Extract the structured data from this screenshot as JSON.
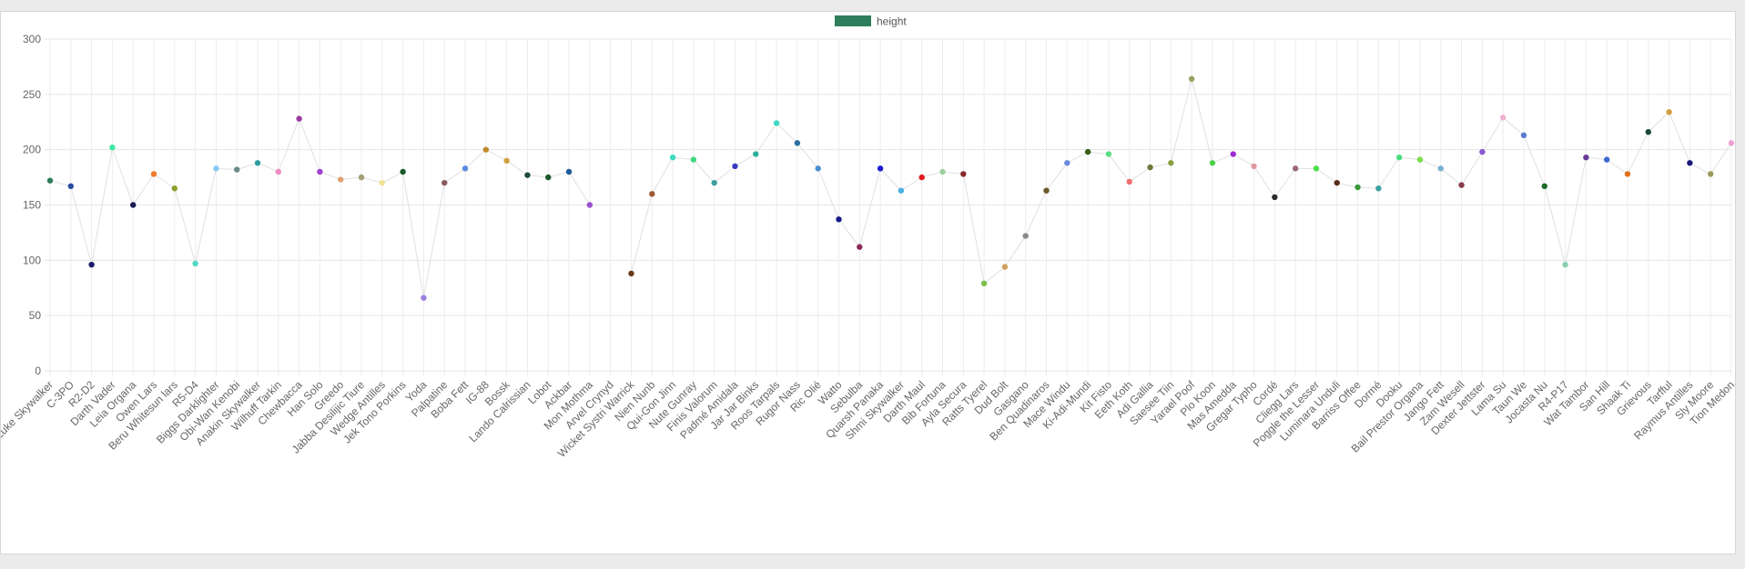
{
  "chart_data": {
    "type": "line",
    "legend": {
      "label": "height",
      "color": "#2e7d5b",
      "placement": "top-center"
    },
    "y_ticks": [
      "0",
      "50",
      "100",
      "150",
      "200",
      "250",
      "300"
    ],
    "ylim": [
      0,
      300
    ],
    "grid": true,
    "line_color": "#e0e0e0",
    "series": [
      {
        "name": "height",
        "points": [
          {
            "label": "Luke Skywalker",
            "value": 172,
            "color": "#2e7d5b"
          },
          {
            "label": "C-3PO",
            "value": 167,
            "color": "#2a4ea0"
          },
          {
            "label": "R2-D2",
            "value": 96,
            "color": "#1b1b6e"
          },
          {
            "label": "Darth Vader",
            "value": 202,
            "color": "#3ee8a5"
          },
          {
            "label": "Leia Organa",
            "value": 150,
            "color": "#1a1a55"
          },
          {
            "label": "Owen Lars",
            "value": 178,
            "color": "#f07a2a"
          },
          {
            "label": "Beru Whitesun lars",
            "value": 165,
            "color": "#8aa02a"
          },
          {
            "label": "R5-D4",
            "value": 97,
            "color": "#4fd8c0"
          },
          {
            "label": "Biggs Darklighter",
            "value": 183,
            "color": "#88c8f0"
          },
          {
            "label": "Obi-Wan Kenobi",
            "value": 182,
            "color": "#6a8a88"
          },
          {
            "label": "Anakin Skywalker",
            "value": 188,
            "color": "#2a9aa0"
          },
          {
            "label": "Wilhuff Tarkin",
            "value": 180,
            "color": "#f08ac0"
          },
          {
            "label": "Chewbacca",
            "value": 228,
            "color": "#9a3aa0"
          },
          {
            "label": "Han Solo",
            "value": 180,
            "color": "#a040d0"
          },
          {
            "label": "Greedo",
            "value": 173,
            "color": "#e0a070"
          },
          {
            "label": "Jabba Desilijic Tiure",
            "value": 175,
            "color": "#a0a070"
          },
          {
            "label": "Wedge Antilles",
            "value": 170,
            "color": "#f0e090"
          },
          {
            "label": "Jek Tono Porkins",
            "value": 180,
            "color": "#1a5a2a"
          },
          {
            "label": "Yoda",
            "value": 66,
            "color": "#9a80e0"
          },
          {
            "label": "Palpatine",
            "value": 170,
            "color": "#8a5a5a"
          },
          {
            "label": "Boba Fett",
            "value": 183,
            "color": "#5a8ae0"
          },
          {
            "label": "IG-88",
            "value": 200,
            "color": "#c08a2a"
          },
          {
            "label": "Bossk",
            "value": 190,
            "color": "#d0a040"
          },
          {
            "label": "Lando Calrissian",
            "value": 177,
            "color": "#1a4a3a"
          },
          {
            "label": "Lobot",
            "value": 175,
            "color": "#1a5a2a"
          },
          {
            "label": "Ackbar",
            "value": 180,
            "color": "#1a5a9a"
          },
          {
            "label": "Mon Mothma",
            "value": 150,
            "color": "#9a50d0"
          },
          {
            "label": "Arvel Crynyd",
            "value": null,
            "color": "#cccccc"
          },
          {
            "label": "Wicket Systri Warrick",
            "value": 88,
            "color": "#6a3a1a"
          },
          {
            "label": "Nien Nunb",
            "value": 160,
            "color": "#a05a3a"
          },
          {
            "label": "Qui-Gon Jinn",
            "value": 193,
            "color": "#3ed8c0"
          },
          {
            "label": "Nute Gunray",
            "value": 191,
            "color": "#3ed880"
          },
          {
            "label": "Finis Valorum",
            "value": 170,
            "color": "#3aa0a0"
          },
          {
            "label": "Padmé Amidala",
            "value": 185,
            "color": "#3a3ac0"
          },
          {
            "label": "Jar Jar Binks",
            "value": 196,
            "color": "#2ab0a0"
          },
          {
            "label": "Roos Tarpals",
            "value": 224,
            "color": "#3ed8c0"
          },
          {
            "label": "Rugor Nass",
            "value": 206,
            "color": "#2a70a0"
          },
          {
            "label": "Ric Olié",
            "value": 183,
            "color": "#4a90d0"
          },
          {
            "label": "Watto",
            "value": 137,
            "color": "#1a1a8a"
          },
          {
            "label": "Sebulba",
            "value": 112,
            "color": "#8a2a5a"
          },
          {
            "label": "Quarsh Panaka",
            "value": 183,
            "color": "#1a1ad0"
          },
          {
            "label": "Shmi Skywalker",
            "value": 163,
            "color": "#4ab0e0"
          },
          {
            "label": "Darth Maul",
            "value": 175,
            "color": "#e01a1a"
          },
          {
            "label": "Bib Fortuna",
            "value": 180,
            "color": "#9ad0a0"
          },
          {
            "label": "Ayla Secura",
            "value": 178,
            "color": "#8a2a2a"
          },
          {
            "label": "Ratts Tyerel",
            "value": 79,
            "color": "#7ac04a"
          },
          {
            "label": "Dud Bolt",
            "value": 94,
            "color": "#d0a060"
          },
          {
            "label": "Gasgano",
            "value": 122,
            "color": "#8a8a8a"
          },
          {
            "label": "Ben Quadinaros",
            "value": 163,
            "color": "#6a5a2a"
          },
          {
            "label": "Mace Windu",
            "value": 188,
            "color": "#6a8ae0"
          },
          {
            "label": "Ki-Adi-Mundi",
            "value": 198,
            "color": "#3a5a1a"
          },
          {
            "label": "Kit Fisto",
            "value": 196,
            "color": "#5ae080"
          },
          {
            "label": "Eeth Koth",
            "value": 171,
            "color": "#f07070"
          },
          {
            "label": "Adi Gallia",
            "value": 184,
            "color": "#6a7a3a"
          },
          {
            "label": "Saesee Tiin",
            "value": 188,
            "color": "#8aa040"
          },
          {
            "label": "Yarael Poof",
            "value": 264,
            "color": "#9aa060"
          },
          {
            "label": "Plo Koon",
            "value": 188,
            "color": "#4ad04a"
          },
          {
            "label": "Mas Amedda",
            "value": 196,
            "color": "#a02ad0"
          },
          {
            "label": "Gregar Typho",
            "value": 185,
            "color": "#e09aa0"
          },
          {
            "label": "Cordé",
            "value": 157,
            "color": "#2a2a2a"
          },
          {
            "label": "Cliegg Lars",
            "value": 183,
            "color": "#9a6a7a"
          },
          {
            "label": "Poggle the Lesser",
            "value": 183,
            "color": "#4ae04a"
          },
          {
            "label": "Luminara Unduli",
            "value": 170,
            "color": "#5a2a1a"
          },
          {
            "label": "Barriss Offee",
            "value": 166,
            "color": "#3a9a3a"
          },
          {
            "label": "Dormé",
            "value": 165,
            "color": "#3aa0a0"
          },
          {
            "label": "Dooku",
            "value": 193,
            "color": "#4ae080"
          },
          {
            "label": "Bail Prestor Organa",
            "value": 191,
            "color": "#7ae04a"
          },
          {
            "label": "Jango Fett",
            "value": 183,
            "color": "#7ab0d0"
          },
          {
            "label": "Zam Wesell",
            "value": 168,
            "color": "#8a3a4a"
          },
          {
            "label": "Dexter Jettster",
            "value": 198,
            "color": "#8a5ad0"
          },
          {
            "label": "Lama Su",
            "value": 229,
            "color": "#f0b0d0"
          },
          {
            "label": "Taun We",
            "value": 213,
            "color": "#5a7ad0"
          },
          {
            "label": "Jocasta Nu",
            "value": 167,
            "color": "#1a6a2a"
          },
          {
            "label": "R4-P17",
            "value": 96,
            "color": "#8ad0b0"
          },
          {
            "label": "Wat Tambor",
            "value": 193,
            "color": "#6a3a9a"
          },
          {
            "label": "San Hill",
            "value": 191,
            "color": "#3a6ad0"
          },
          {
            "label": "Shaak Ti",
            "value": 178,
            "color": "#e0701a"
          },
          {
            "label": "Grievous",
            "value": 216,
            "color": "#1a4a3a"
          },
          {
            "label": "Tarfful",
            "value": 234,
            "color": "#d0a040"
          },
          {
            "label": "Raymus Antilles",
            "value": 188,
            "color": "#1a1a7a"
          },
          {
            "label": "Sly Moore",
            "value": 178,
            "color": "#9a9a5a"
          },
          {
            "label": "Tion Medon",
            "value": 206,
            "color": "#f0a0d0"
          }
        ]
      }
    ]
  }
}
